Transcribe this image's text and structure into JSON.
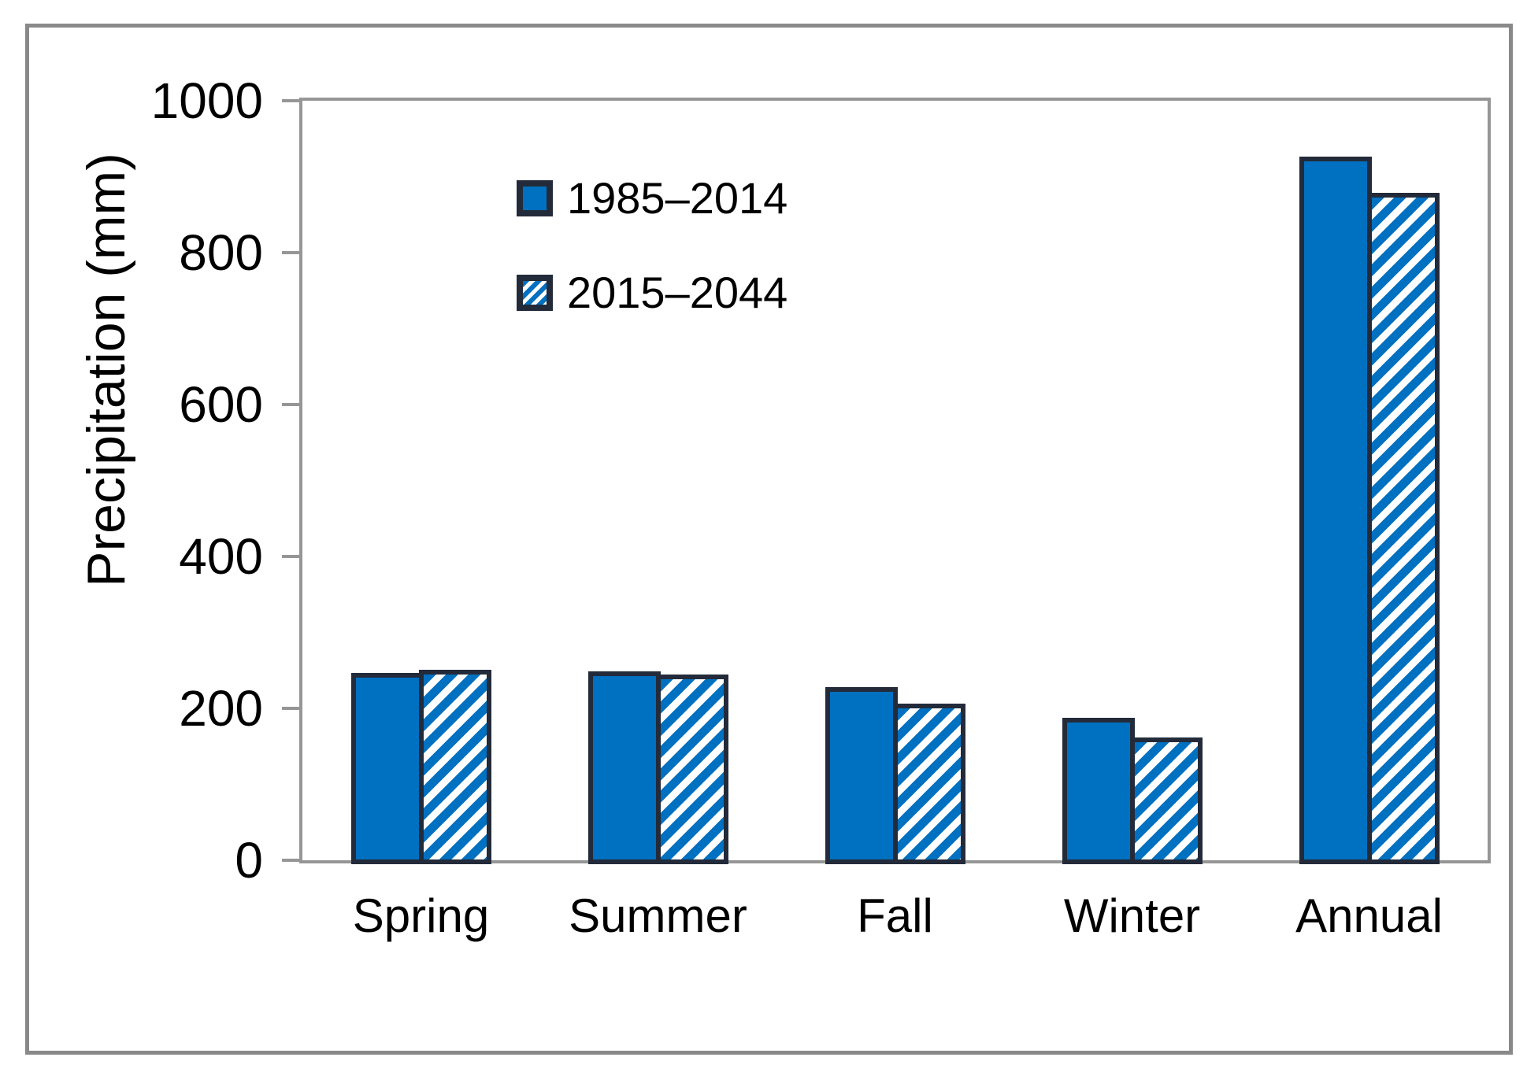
{
  "chart_data": {
    "type": "bar",
    "title": "",
    "xlabel": "",
    "ylabel": "Precipitation (mm)",
    "ylim": [
      0,
      1000
    ],
    "yticks": [
      0,
      200,
      400,
      600,
      800,
      1000
    ],
    "grid": false,
    "legend_position": "upper-left-inside",
    "categories": [
      "Spring",
      "Summer",
      "Fall",
      "Winter",
      "Annual"
    ],
    "series": [
      {
        "name": "1985–2014",
        "pattern": "solid",
        "values": [
          252,
          254,
          233,
          193,
          932
        ]
      },
      {
        "name": "2015–2044",
        "pattern": "hatched",
        "values": [
          256,
          250,
          211,
          167,
          884
        ]
      }
    ]
  },
  "colors": {
    "bar_fill": "#0070C0",
    "bar_border": "#232B3A",
    "axis": "#969696",
    "outer_border": "#898989",
    "text": "#000000"
  }
}
